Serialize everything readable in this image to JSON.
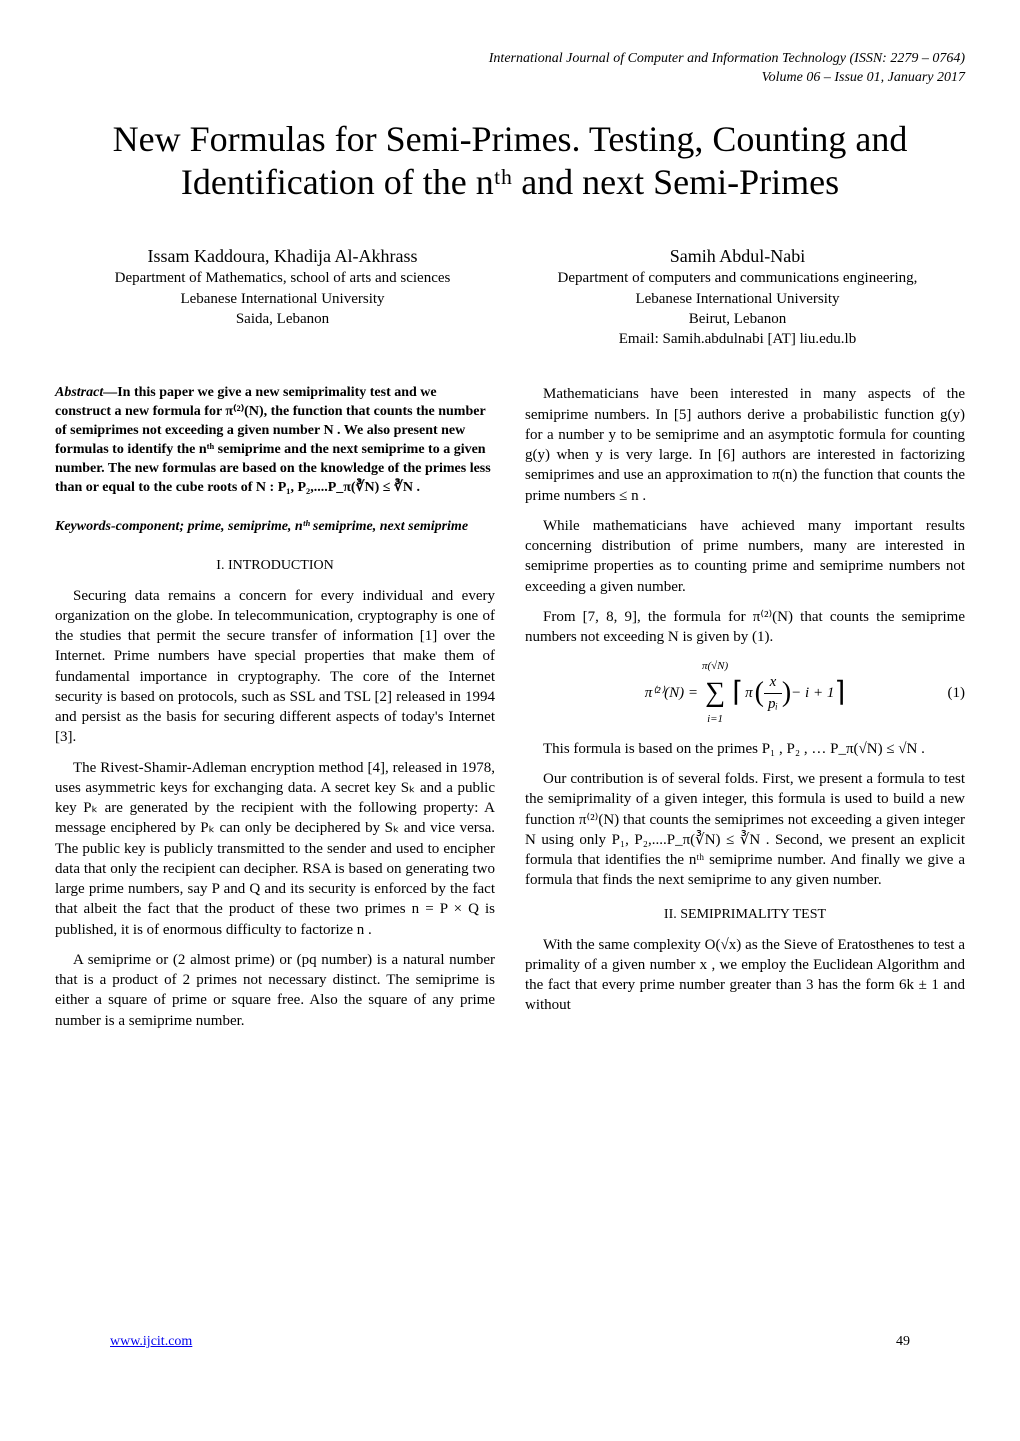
{
  "journal": {
    "line1": "International Journal of Computer and Information Technology (ISSN: 2279 – 0764)",
    "line2": "Volume 06 – Issue 01, January 2017"
  },
  "title": "New Formulas for Semi-Primes. Testing, Counting and Identification of the nᵗʰ and next Semi-Primes",
  "authors": {
    "left": {
      "names": "Issam Kaddoura, Khadija Al-Akhrass",
      "aff1": "Department of Mathematics, school of arts and sciences",
      "aff2": "Lebanese International University",
      "aff3": "Saida, Lebanon"
    },
    "right": {
      "names": "Samih Abdul-Nabi",
      "aff1": "Department of computers and communications engineering,",
      "aff2": "Lebanese International University",
      "aff3": "Beirut, Lebanon",
      "email": "Email: Samih.abdulnabi [AT] liu.edu.lb"
    }
  },
  "abstract": {
    "label": "Abstract—",
    "body": "In this paper we give a new semiprimality test and we construct a new formula for π⁽²⁾(N), the function that counts the number of semiprimes not exceeding a given number N . We also present new formulas to identify the nᵗʰ semiprime and the next semiprime to a given number. The new formulas are based on the knowledge of the primes less than or equal to the cube roots of N : P₁, P₂,....P_π(∛N) ≤ ∛N ."
  },
  "keywords": "Keywords-component; prime, semiprime, nᵗʰ semiprime, next semiprime",
  "sections": {
    "s1_heading": "I.    INTRODUCTION",
    "s1p1": "Securing data remains a concern for every individual and every organization on the globe. In telecommunication, cryptography is one of the studies that permit the secure transfer of information [1] over the Internet. Prime numbers have special properties that make them of fundamental importance in cryptography. The core of the Internet security is based on protocols, such as SSL and TSL [2] released in 1994 and persist as the basis for securing different aspects of today's Internet [3].",
    "s1p2": "The Rivest-Shamir-Adleman encryption method [4], released in 1978, uses asymmetric keys for exchanging data. A secret key Sₖ and a public key Pₖ are generated by the recipient with the following property: A message enciphered by Pₖ can only be deciphered by Sₖ and vice versa. The public key is publicly transmitted to the sender and used to encipher data that only the recipient can decipher. RSA is based on generating two large prime numbers, say P and Q and its security is enforced by the fact that albeit the fact that the product of these two primes n = P × Q is published, it is of enormous difficulty to factorize n .",
    "s1p3": "A semiprime or (2 almost prime) or (pq number) is a natural number that is a product of 2 primes not necessary distinct. The semiprime is either a square of prime or square free. Also the square of any prime number is a semiprime number.",
    "r1": "Mathematicians have been interested in many aspects of the semiprime numbers. In [5] authors derive a probabilistic function g(y) for a number y to be semiprime and an asymptotic formula for counting g(y) when y is very large. In [6] authors are interested in factorizing semiprimes and use an approximation to π(n) the function that counts the prime numbers ≤ n .",
    "r2": "While mathematicians have achieved many important results concerning distribution of prime numbers, many are interested in semiprime properties as to counting prime and semiprime numbers not exceeding a given number.",
    "r3": "From [7, 8, 9], the formula for π⁽²⁾(N) that counts the semiprime numbers not exceeding N is given by (1).",
    "eq1_num": "(1)",
    "r4": "This formula is based on the primes P₁ , P₂ , … P_π(√N) ≤ √N .",
    "r5": "Our contribution is of several folds. First, we present a formula to test the semiprimality of a given integer, this formula is used to build a new function π⁽²⁾(N) that counts the semiprimes not exceeding a given integer N using only P₁, P₂,....P_π(∛N) ≤ ∛N . Second, we present an explicit formula that identifies the nᵗʰ semiprime number. And finally we give a formula that finds the next semiprime to any given number.",
    "s2_heading": "II.    SEMIPRIMALITY TEST",
    "s2p1": "With the same complexity O(√x) as the Sieve of Eratosthenes to test a primality of a given number x , we employ the Euclidean Algorithm and the fact that every prime number greater than 3 has the form 6k ± 1 and without"
  },
  "footer": {
    "link": "www.ijcit.com",
    "page": "49"
  },
  "eq1": {
    "lhs": "π⁽²⁾(N) =",
    "sum_top": "π(√N)",
    "sum_bottom": "i=1",
    "frac_num": "x",
    "frac_den": "pᵢ",
    "tail": "− i + 1"
  }
}
